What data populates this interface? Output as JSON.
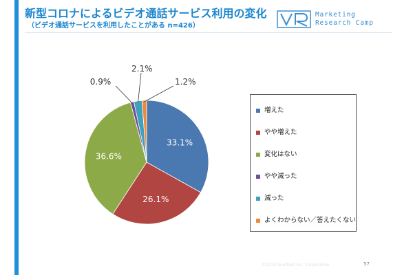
{
  "header": {
    "title": "新型コロナによるビデオ通話サービス利用の変化",
    "subtitle": "（ビデオ通話サービスを利用したことがある n=426）"
  },
  "brand": {
    "logo_icon": "vr-logo-icon",
    "name": "Marketing\nResearch Camp"
  },
  "footer": {
    "copyright": "©2020 Sumfoot Inc. Corporation",
    "page": "57"
  },
  "chart_data": {
    "type": "pie",
    "title": "",
    "series": [
      {
        "categories": [
          "増えた",
          "やや増えた",
          "変化はない",
          "やや減った",
          "減った",
          "よくわからない／答えたくない"
        ],
        "values": [
          33.1,
          26.1,
          36.6,
          0.9,
          2.1,
          1.2
        ],
        "labels": [
          "33.1%",
          "26.1%",
          "36.6%",
          "0.9%",
          "2.1%",
          "1.2%"
        ],
        "colors": [
          "#4a78b0",
          "#b04541",
          "#8daa48",
          "#6f4f95",
          "#3fa1bb",
          "#ee8b3a"
        ]
      }
    ],
    "legend": "right",
    "start_angle": "12 o'clock",
    "direction": "clockwise"
  }
}
